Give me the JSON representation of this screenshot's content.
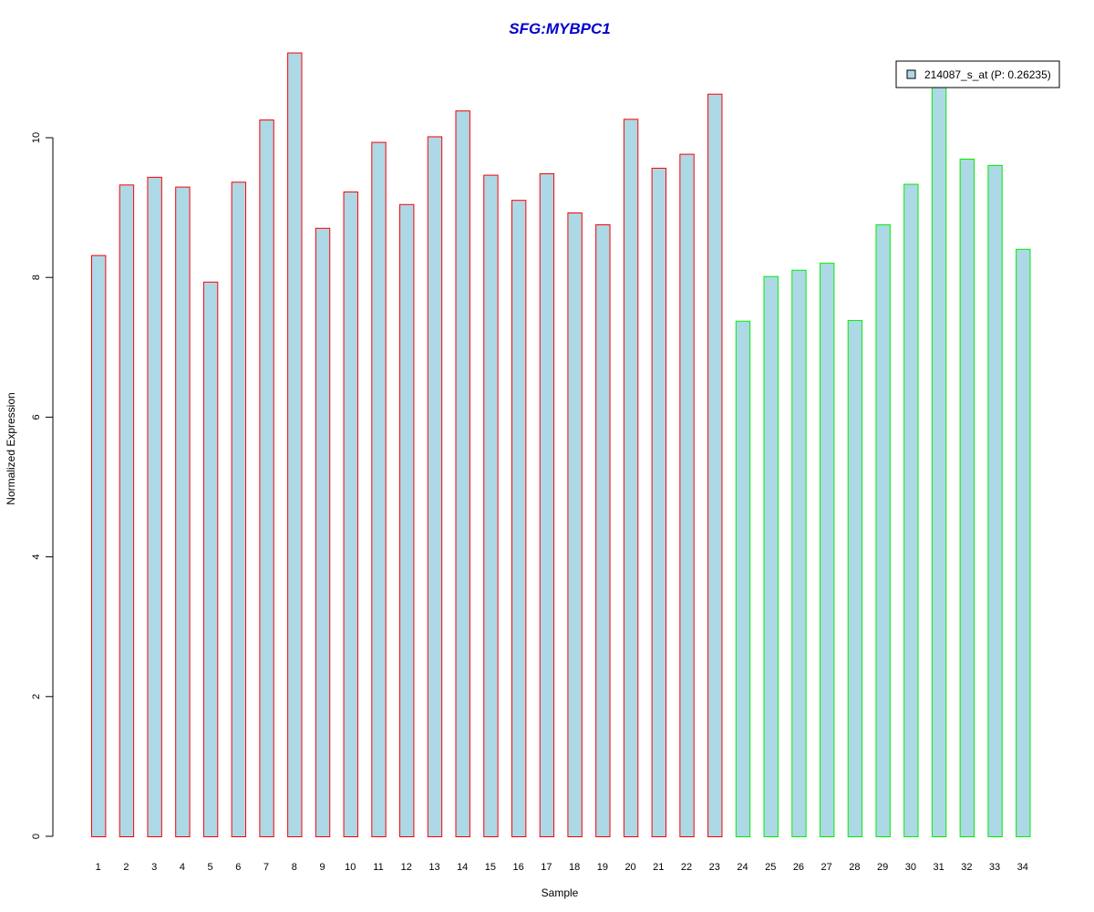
{
  "chart_data": {
    "type": "bar",
    "title": "SFG:MYBPC1",
    "xlabel": "Sample",
    "ylabel": "Normalized Expression",
    "ylim": [
      0,
      11.2
    ],
    "yticks": [
      0,
      2,
      4,
      6,
      8,
      10
    ],
    "categories": [
      "1",
      "2",
      "3",
      "4",
      "5",
      "6",
      "7",
      "8",
      "9",
      "10",
      "11",
      "12",
      "13",
      "14",
      "15",
      "16",
      "17",
      "18",
      "19",
      "20",
      "21",
      "22",
      "23",
      "24",
      "25",
      "26",
      "27",
      "28",
      "29",
      "30",
      "31",
      "32",
      "33",
      "34"
    ],
    "series": [
      {
        "name": "214087_s_at (P: 0.26235)",
        "values": [
          8.32,
          9.33,
          9.44,
          9.3,
          7.94,
          9.37,
          10.26,
          11.22,
          8.71,
          9.23,
          9.94,
          9.05,
          10.02,
          10.39,
          9.47,
          9.11,
          9.49,
          8.93,
          8.76,
          10.27,
          9.57,
          9.77,
          10.63,
          7.38,
          8.02,
          8.11,
          8.21,
          7.39,
          8.76,
          9.34,
          10.83,
          9.7,
          9.61,
          8.41
        ]
      }
    ],
    "groups": [
      {
        "from": 1,
        "to": 23,
        "border_color": "#ff0000"
      },
      {
        "from": 24,
        "to": 34,
        "border_color": "#00ee00"
      }
    ],
    "bar_fill": "#add8e6",
    "title_color": "#0000cc",
    "grid": false,
    "legend_position": "top-right"
  }
}
